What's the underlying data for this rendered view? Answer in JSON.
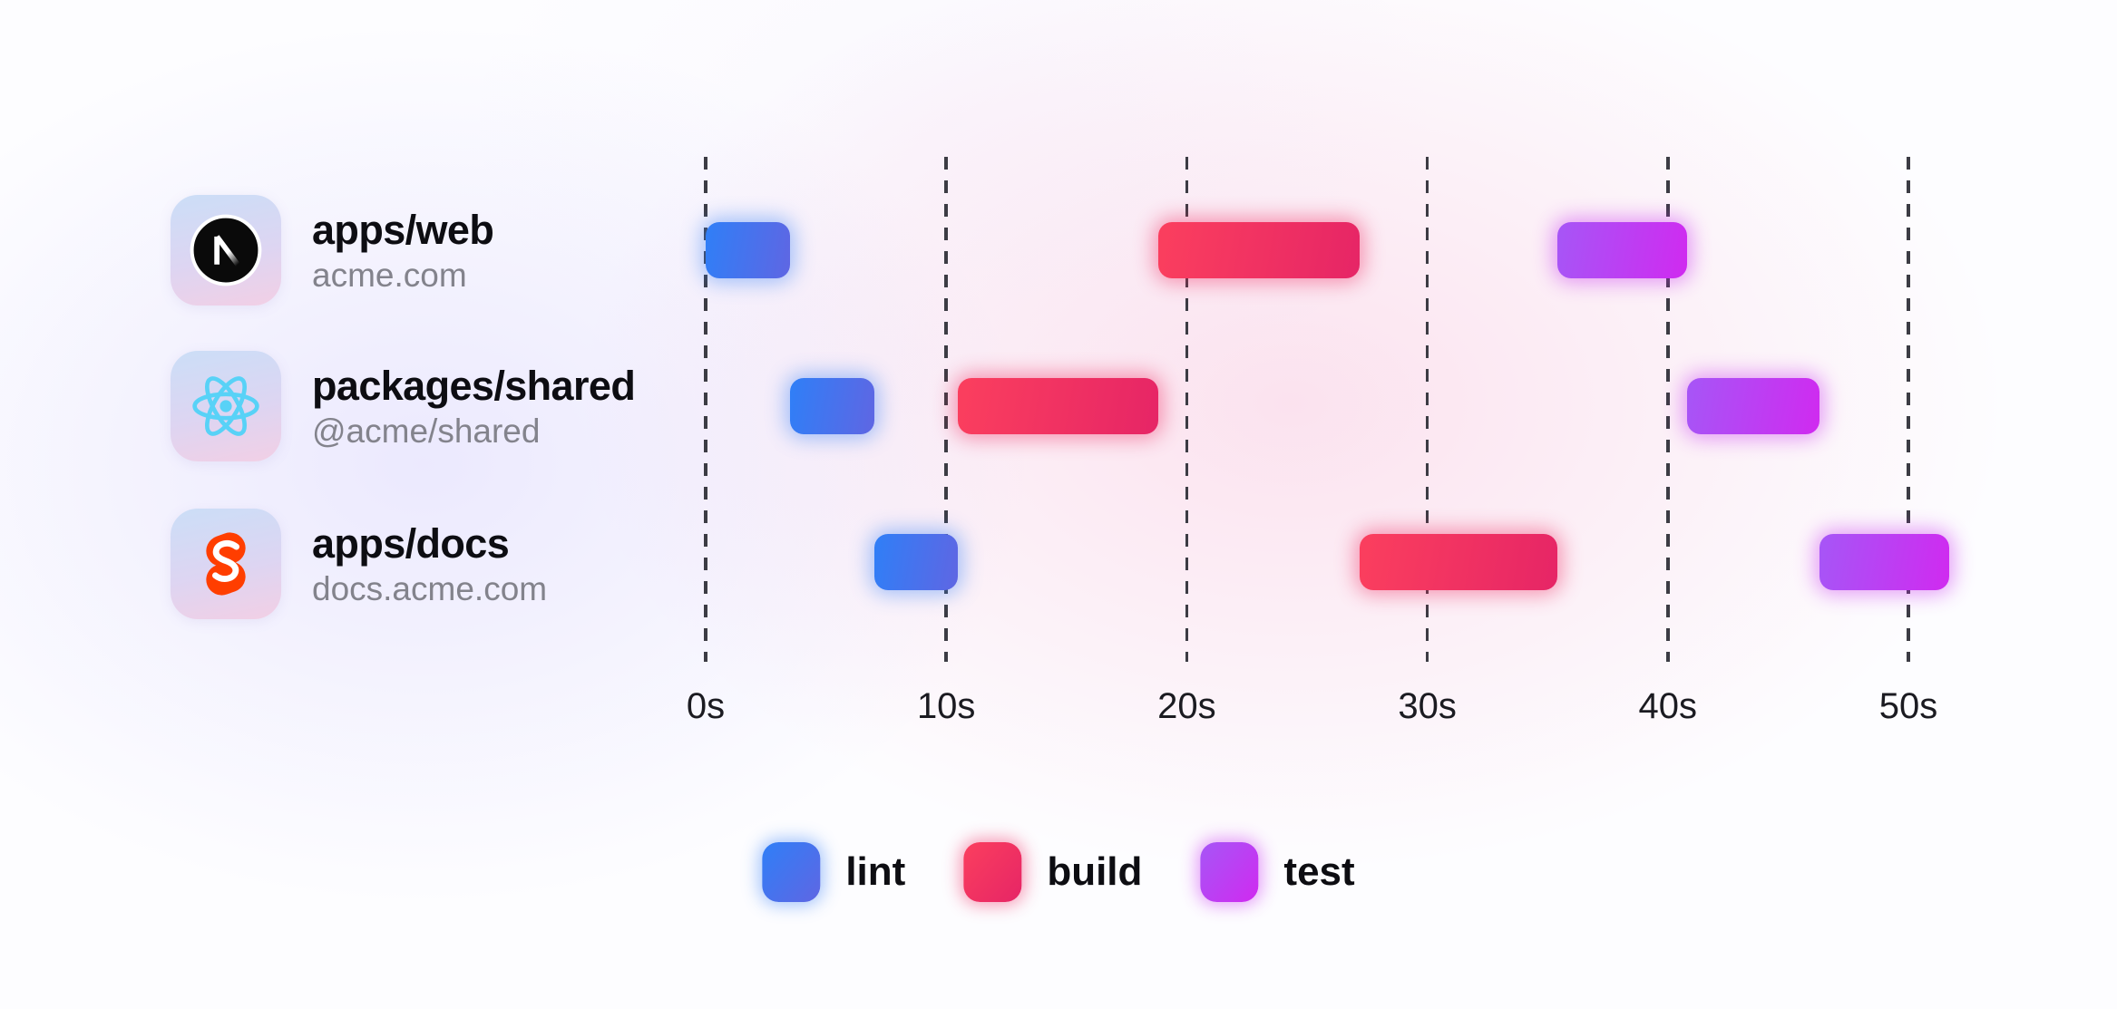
{
  "projects": [
    {
      "title": "apps/web",
      "subtitle": "acme.com",
      "icon": "nextjs-logo"
    },
    {
      "title": "packages/shared",
      "subtitle": "@acme/shared",
      "icon": "react-logo"
    },
    {
      "title": "apps/docs",
      "subtitle": "docs.acme.com",
      "icon": "svelte-logo"
    }
  ],
  "chart_data": {
    "type": "bar",
    "variant": "gantt-timeline",
    "unit": "seconds",
    "x_range": [
      0,
      52.5
    ],
    "x_ticks": [
      {
        "value": 0,
        "label": "0s"
      },
      {
        "value": 10,
        "label": "10s"
      },
      {
        "value": 20,
        "label": "20s"
      },
      {
        "value": 30,
        "label": "30s"
      },
      {
        "value": 40,
        "label": "40s"
      },
      {
        "value": 50,
        "label": "50s"
      }
    ],
    "grid": "dashed-vertical",
    "grid_color": "#3c3c44",
    "rows": [
      "apps/web",
      "packages/shared",
      "apps/docs"
    ],
    "series": [
      {
        "name": "lint",
        "gradient": [
          "#2f7ff7",
          "#5f66e3"
        ],
        "glow": "rgba(59,130,246,0.45)"
      },
      {
        "name": "build",
        "gradient": [
          "#fb3f5e",
          "#e62566"
        ],
        "glow": "rgba(240,40,95,0.45)"
      },
      {
        "name": "test",
        "gradient": [
          "#a656f6",
          "#d02af0"
        ],
        "glow": "rgba(200,45,240,0.45)"
      }
    ],
    "tasks": [
      {
        "row": "apps/web",
        "series": "lint",
        "start": 0,
        "end": 3.5
      },
      {
        "row": "apps/web",
        "series": "build",
        "start": 18.8,
        "end": 27.2
      },
      {
        "row": "apps/web",
        "series": "test",
        "start": 35.4,
        "end": 40.8
      },
      {
        "row": "packages/shared",
        "series": "lint",
        "start": 3.5,
        "end": 7
      },
      {
        "row": "packages/shared",
        "series": "build",
        "start": 10.5,
        "end": 18.8
      },
      {
        "row": "packages/shared",
        "series": "test",
        "start": 40.8,
        "end": 46.3
      },
      {
        "row": "apps/docs",
        "series": "lint",
        "start": 7,
        "end": 10.5
      },
      {
        "row": "apps/docs",
        "series": "build",
        "start": 27.2,
        "end": 35.4
      },
      {
        "row": "apps/docs",
        "series": "test",
        "start": 46.3,
        "end": 51.7
      }
    ],
    "legend_position": "bottom-center"
  },
  "legend": {
    "items": [
      {
        "label": "lint"
      },
      {
        "label": "build"
      },
      {
        "label": "test"
      }
    ]
  }
}
